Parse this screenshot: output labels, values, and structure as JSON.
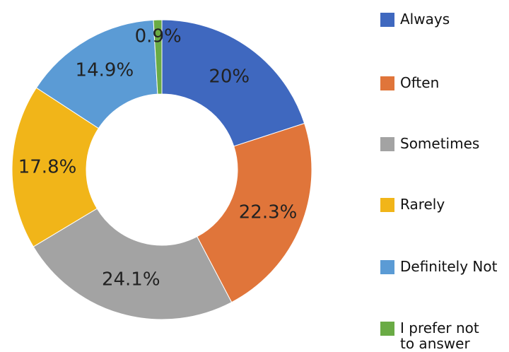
{
  "chart_data": {
    "type": "donut",
    "categories": [
      "Always",
      "Often",
      "Sometimes",
      "Rarely",
      "Definitely Not",
      "I prefer not to answer"
    ],
    "values": [
      20,
      22.3,
      24.1,
      17.8,
      14.9,
      0.9
    ],
    "value_labels": [
      "20%",
      "22.3%",
      "24.1%",
      "17.8%",
      "14.9%",
      "0.9%"
    ],
    "colors": [
      "#3f68bf",
      "#e0753a",
      "#a3a3a3",
      "#f1b519",
      "#5b9bd5",
      "#6aab45"
    ],
    "legend": "right"
  }
}
